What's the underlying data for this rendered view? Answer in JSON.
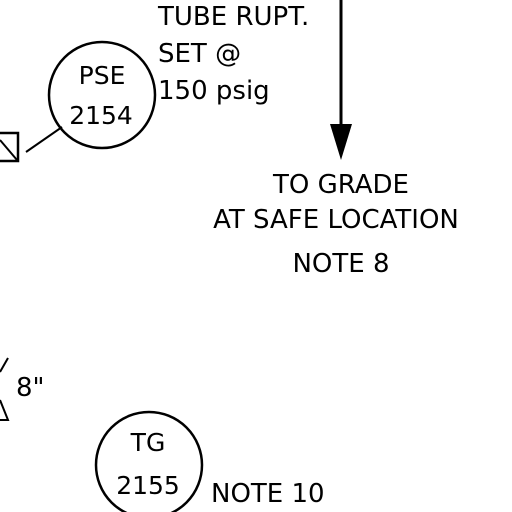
{
  "instrument_note": {
    "line1": "TUBE RUPT.",
    "line2": "SET @",
    "line3": "150 psig"
  },
  "pse_bubble": {
    "tag": "PSE",
    "number": "2154"
  },
  "destination_note": {
    "line1": "TO GRADE",
    "line2": "AT SAFE LOCATION",
    "line3": "NOTE 8"
  },
  "pipe_size": "8\"",
  "tg_bubble": {
    "tag": "TG",
    "number": "2155"
  },
  "tg_note": "NOTE 10",
  "colors": {
    "linework": "#000000",
    "background": "#ffffff"
  }
}
